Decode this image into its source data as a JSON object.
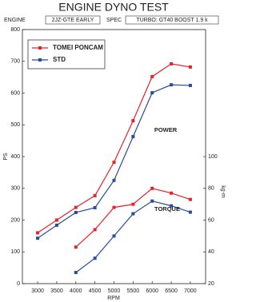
{
  "chart_data": {
    "type": "line",
    "title": "ENGINE DYNO TEST",
    "info": {
      "engine_label": "ENGINE",
      "engine": "2JZ-GTE EARLY",
      "spec_label": "SPEC",
      "spec": "TURBO: GT40  BOOST 1.9 k"
    },
    "xlabel": "RPM",
    "ylabel": "PS",
    "y2label": "kg-m",
    "x": [
      3000,
      3500,
      4000,
      4500,
      5000,
      5500,
      6000,
      6500,
      7000
    ],
    "xlim": [
      2600,
      7400
    ],
    "xticks": [
      3000,
      3500,
      4000,
      4500,
      5000,
      5500,
      6000,
      6500,
      7000
    ],
    "ylim": [
      0,
      800
    ],
    "yticks": [
      0,
      100,
      200,
      300,
      400,
      500,
      600,
      700,
      800
    ],
    "y2lim": [
      20,
      180
    ],
    "y2ticks": [
      20,
      40,
      60,
      80,
      100
    ],
    "legend": "upper left",
    "series": [
      {
        "name": "TOMEI PONCAM",
        "color": "#e8202a",
        "values": [
          160,
          200,
          240,
          277,
          382,
          513,
          652,
          692,
          682
        ],
        "torque": [
          null,
          null,
          43,
          54,
          68,
          70,
          80,
          77,
          73
        ]
      },
      {
        "name": "STD",
        "color": "#2a4a9a",
        "values": [
          143,
          184,
          224,
          239,
          325,
          463,
          601,
          626,
          624
        ],
        "torque": [
          null,
          null,
          27,
          36,
          50,
          64,
          72,
          69,
          65
        ]
      }
    ],
    "annotations": [
      {
        "text": "POWER"
      },
      {
        "text": "TORQUE"
      }
    ]
  }
}
